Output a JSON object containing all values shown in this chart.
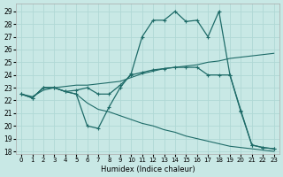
{
  "xlabel": "Humidex (Indice chaleur)",
  "bg_color": "#c8e8e5",
  "grid_color": "#b0d8d5",
  "line_color": "#1e6b68",
  "xlim": [
    -0.5,
    23.5
  ],
  "ylim": [
    17.8,
    29.6
  ],
  "xticks": [
    0,
    1,
    2,
    3,
    4,
    5,
    6,
    7,
    8,
    9,
    10,
    11,
    12,
    13,
    14,
    15,
    16,
    17,
    18,
    19,
    20,
    21,
    22,
    23
  ],
  "yticks": [
    18,
    19,
    20,
    21,
    22,
    23,
    24,
    25,
    26,
    27,
    28,
    29
  ],
  "curve_hump_x": [
    0,
    1,
    2,
    3,
    4,
    5,
    6,
    7,
    8,
    9,
    10,
    11,
    12,
    13,
    14,
    15,
    16,
    17,
    18,
    19,
    20,
    21,
    22,
    23
  ],
  "curve_hump_y": [
    22.5,
    22.2,
    23.0,
    23.0,
    22.7,
    22.5,
    20.0,
    19.8,
    21.5,
    23.0,
    24.1,
    27.0,
    28.3,
    28.3,
    29.0,
    28.2,
    28.3,
    27.0,
    29.0,
    24.0,
    21.1,
    18.5,
    18.3,
    18.2
  ],
  "curve_up_x": [
    0,
    1,
    2,
    3,
    4,
    5,
    6,
    7,
    8,
    9,
    10,
    11,
    12,
    13,
    14,
    15,
    16,
    17,
    18,
    19,
    20,
    21,
    22,
    23
  ],
  "curve_up_y": [
    22.5,
    22.3,
    22.8,
    23.0,
    23.1,
    23.2,
    23.2,
    23.3,
    23.4,
    23.5,
    23.8,
    24.1,
    24.3,
    24.5,
    24.6,
    24.7,
    24.8,
    25.0,
    25.1,
    25.3,
    25.4,
    25.5,
    25.6,
    25.7
  ],
  "curve_down_x": [
    0,
    1,
    2,
    3,
    4,
    5,
    6,
    7,
    8,
    9,
    10,
    11,
    12,
    13,
    14,
    15,
    16,
    17,
    18,
    19,
    20,
    21,
    22,
    23
  ],
  "curve_down_y": [
    22.5,
    22.2,
    23.0,
    23.0,
    22.7,
    22.5,
    21.8,
    21.3,
    21.1,
    20.8,
    20.5,
    20.2,
    20.0,
    19.7,
    19.5,
    19.2,
    19.0,
    18.8,
    18.6,
    18.4,
    18.3,
    18.2,
    18.1,
    18.0
  ],
  "curve_mid_x": [
    0,
    1,
    2,
    3,
    4,
    5,
    6,
    7,
    8,
    9,
    10,
    11,
    12,
    13,
    14,
    15,
    16,
    17,
    18,
    19,
    20,
    21,
    22,
    23
  ],
  "curve_mid_y": [
    22.5,
    22.2,
    23.0,
    23.0,
    22.7,
    22.8,
    23.0,
    22.5,
    22.5,
    23.2,
    24.0,
    24.2,
    24.4,
    24.5,
    24.6,
    24.6,
    24.6,
    24.0,
    24.0,
    24.0,
    21.2,
    18.5,
    18.3,
    18.2
  ]
}
